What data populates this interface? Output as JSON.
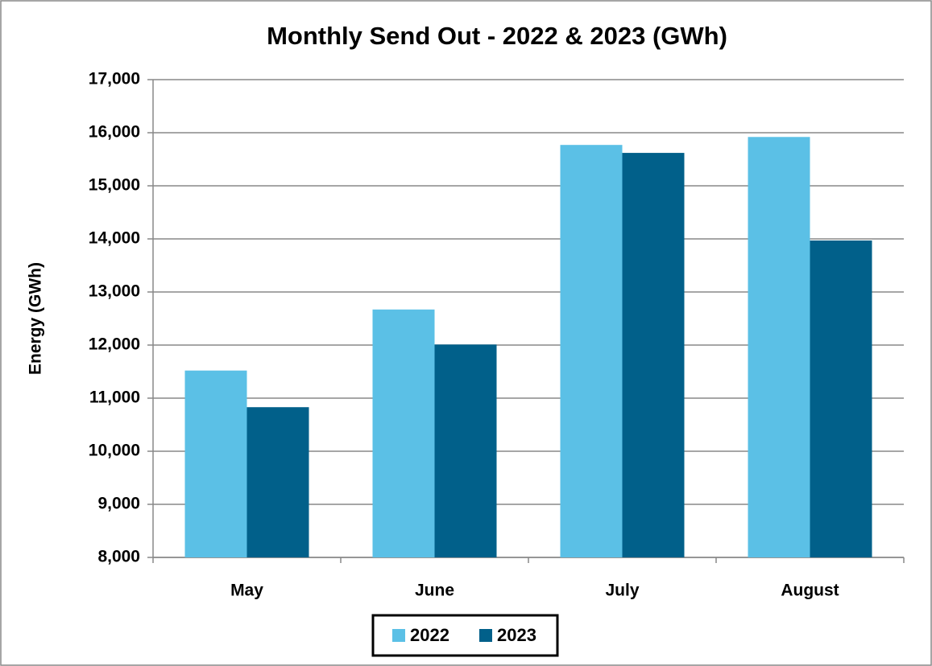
{
  "chart_data": {
    "type": "bar",
    "title": "Monthly Send Out - 2022 & 2023 (GWh)",
    "y_label": "Energy (GWh)",
    "categories": [
      "May",
      "June",
      "July",
      "August"
    ],
    "series": [
      {
        "name": "2022",
        "color": "#5bc0e6",
        "values": [
          11520,
          12670,
          15770,
          15920
        ]
      },
      {
        "name": "2023",
        "color": "#01608a",
        "values": [
          10830,
          12010,
          15620,
          13970
        ]
      }
    ],
    "ylim": [
      8000,
      17000
    ],
    "yticks": [
      {
        "value": 8000,
        "label": "8,000"
      },
      {
        "value": 9000,
        "label": "9,000"
      },
      {
        "value": 10000,
        "label": "10,000"
      },
      {
        "value": 11000,
        "label": "11,000"
      },
      {
        "value": 12000,
        "label": "12,000"
      },
      {
        "value": 13000,
        "label": "13,000"
      },
      {
        "value": 14000,
        "label": "14,000"
      },
      {
        "value": 15000,
        "label": "15,000"
      },
      {
        "value": 16000,
        "label": "16,000"
      },
      {
        "value": 17000,
        "label": "17,000"
      }
    ],
    "grid": true,
    "legend": "bottom"
  }
}
